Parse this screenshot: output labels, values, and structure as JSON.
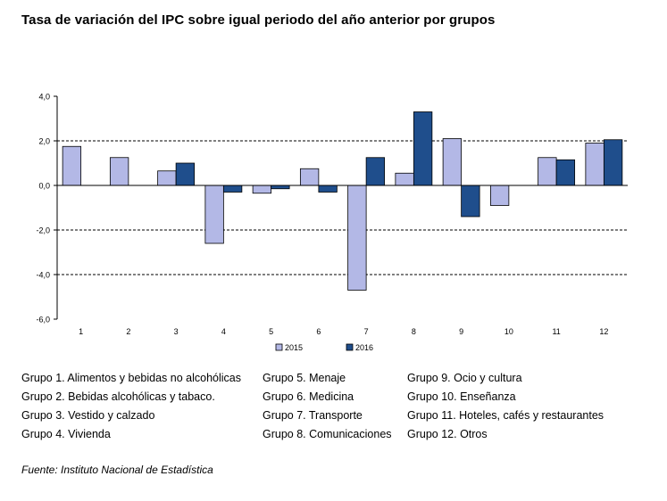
{
  "title": "Tasa de variación del IPC sobre igual periodo del año anterior por grupos",
  "chart_data": {
    "type": "bar",
    "categories": [
      "1",
      "2",
      "3",
      "4",
      "5",
      "6",
      "7",
      "8",
      "9",
      "10",
      "11",
      "12"
    ],
    "series": [
      {
        "name": "2015",
        "color": "#b3b8e6",
        "values": [
          1.75,
          1.25,
          0.65,
          -2.6,
          -0.35,
          0.75,
          -4.7,
          0.55,
          2.1,
          -0.9,
          1.25,
          1.9
        ]
      },
      {
        "name": "2016",
        "color": "#1f4e8c",
        "values": [
          0.0,
          0.0,
          1.0,
          -0.3,
          -0.15,
          -0.3,
          1.25,
          3.3,
          -1.4,
          0.0,
          1.15,
          2.05
        ]
      }
    ],
    "ylim": [
      -6,
      4
    ],
    "yticks": [
      -6,
      -4,
      -2,
      0,
      2,
      4
    ],
    "ytick_labels": [
      "-6,0",
      "-4,0",
      "-2,0",
      "0,0",
      "2,0",
      "4,0"
    ],
    "gridlines": [
      -4,
      -2,
      2
    ],
    "legend": "bottom-center",
    "title": "",
    "xlabel": "",
    "ylabel": ""
  },
  "groups": [
    "Grupo 1. Alimentos y bebidas no alcohólicas",
    "Grupo 2. Bebidas alcohólicas y  tabaco.",
    "Grupo 3. Vestido y calzado",
    "Grupo 4. Vivienda",
    "Grupo 5. Menaje",
    "Grupo 6. Medicina",
    "Grupo 7. Transporte",
    "Grupo 8. Comunicaciones",
    "Grupo 9. Ocio y cultura",
    "Grupo 10. Enseñanza",
    "Grupo 11. Hoteles, cafés y restaurantes",
    "Grupo 12. Otros"
  ],
  "source": "Fuente: Instituto Nacional de Estadística"
}
